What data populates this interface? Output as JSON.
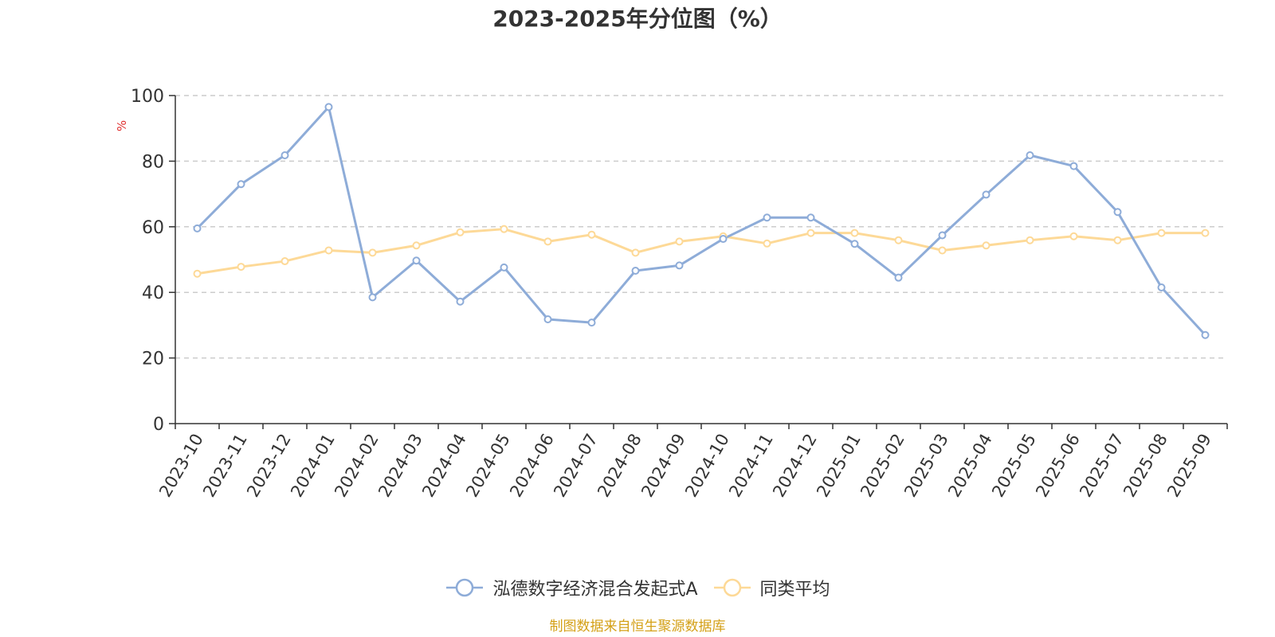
{
  "chart_data": {
    "type": "line",
    "title": "2023-2025年分位图（%）",
    "ylabel": "%",
    "ylim": [
      0,
      100
    ],
    "yticks": [
      0,
      20,
      40,
      60,
      80,
      100
    ],
    "grid": true,
    "legend_position": "bottom",
    "categories": [
      "2023-10",
      "2023-11",
      "2023-12",
      "2024-01",
      "2024-02",
      "2024-03",
      "2024-04",
      "2024-05",
      "2024-06",
      "2024-07",
      "2024-08",
      "2024-09",
      "2024-10",
      "2024-11",
      "2024-12",
      "2025-01",
      "2025-02",
      "2025-03",
      "2025-04",
      "2025-05",
      "2025-06",
      "2025-07",
      "2025-08",
      "2025-09"
    ],
    "series": [
      {
        "name": "泓德数字经济混合发起式A",
        "color": "#8eacd8",
        "values": [
          59.5,
          73,
          81.8,
          96.5,
          38.5,
          49.7,
          37.2,
          47.6,
          31.8,
          30.8,
          46.6,
          48.2,
          56.3,
          62.8,
          62.8,
          54.8,
          44.5,
          57.4,
          69.8,
          81.8,
          78.5,
          64.5,
          41.5,
          27
        ]
      },
      {
        "name": "同类平均",
        "color": "#fdd997",
        "values": [
          45.7,
          47.8,
          49.5,
          52.8,
          52.1,
          54.3,
          58.3,
          59.3,
          55.5,
          57.6,
          52.1,
          55.5,
          57.1,
          54.9,
          58.1,
          58.1,
          55.9,
          52.8,
          54.3,
          55.9,
          57.1,
          55.9,
          58.1,
          58.1
        ]
      }
    ]
  },
  "source_note": "制图数据来自恒生聚源数据库"
}
